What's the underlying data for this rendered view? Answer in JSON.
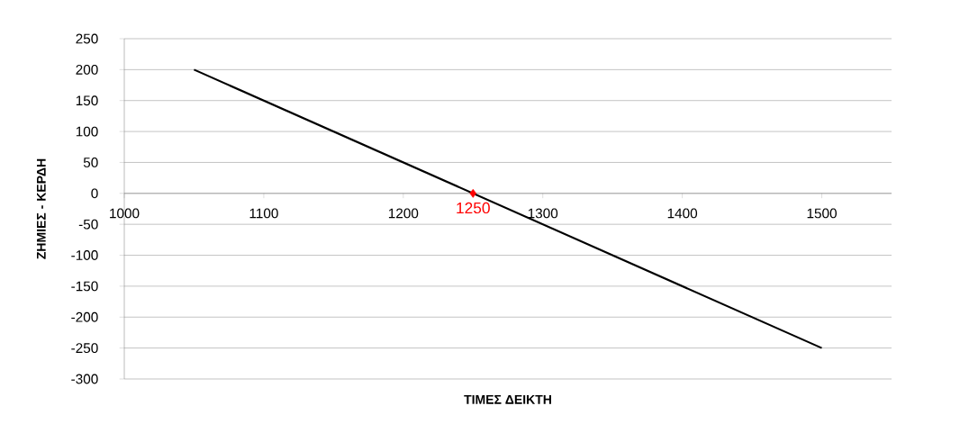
{
  "chart_data": {
    "type": "line",
    "xlabel": "ΤΙΜΕΣ ΔΕΙΚΤΗ",
    "ylabel": "ΖΗΜΙΕΣ - ΚΕΡΔΗ",
    "xlim": [
      1000,
      1550
    ],
    "xticks": [
      1000,
      1100,
      1200,
      1300,
      1400,
      1500
    ],
    "ylim": [
      -300,
      250
    ],
    "yticks": [
      -300,
      -250,
      -200,
      -150,
      -100,
      -50,
      0,
      50,
      100,
      150,
      200,
      250
    ],
    "grid": "y",
    "series": [
      {
        "color": "#000000",
        "x": [
          1050,
          1500
        ],
        "values": [
          200,
          -250
        ],
        "marker": "none",
        "line_style": "solid"
      },
      {
        "type": "scatter",
        "color": "#ff0000",
        "x": [
          1250
        ],
        "values": [
          0
        ],
        "marker": "diamond"
      }
    ],
    "annotations": [
      {
        "text": "1250",
        "x": 1250,
        "y": 0
      }
    ]
  }
}
